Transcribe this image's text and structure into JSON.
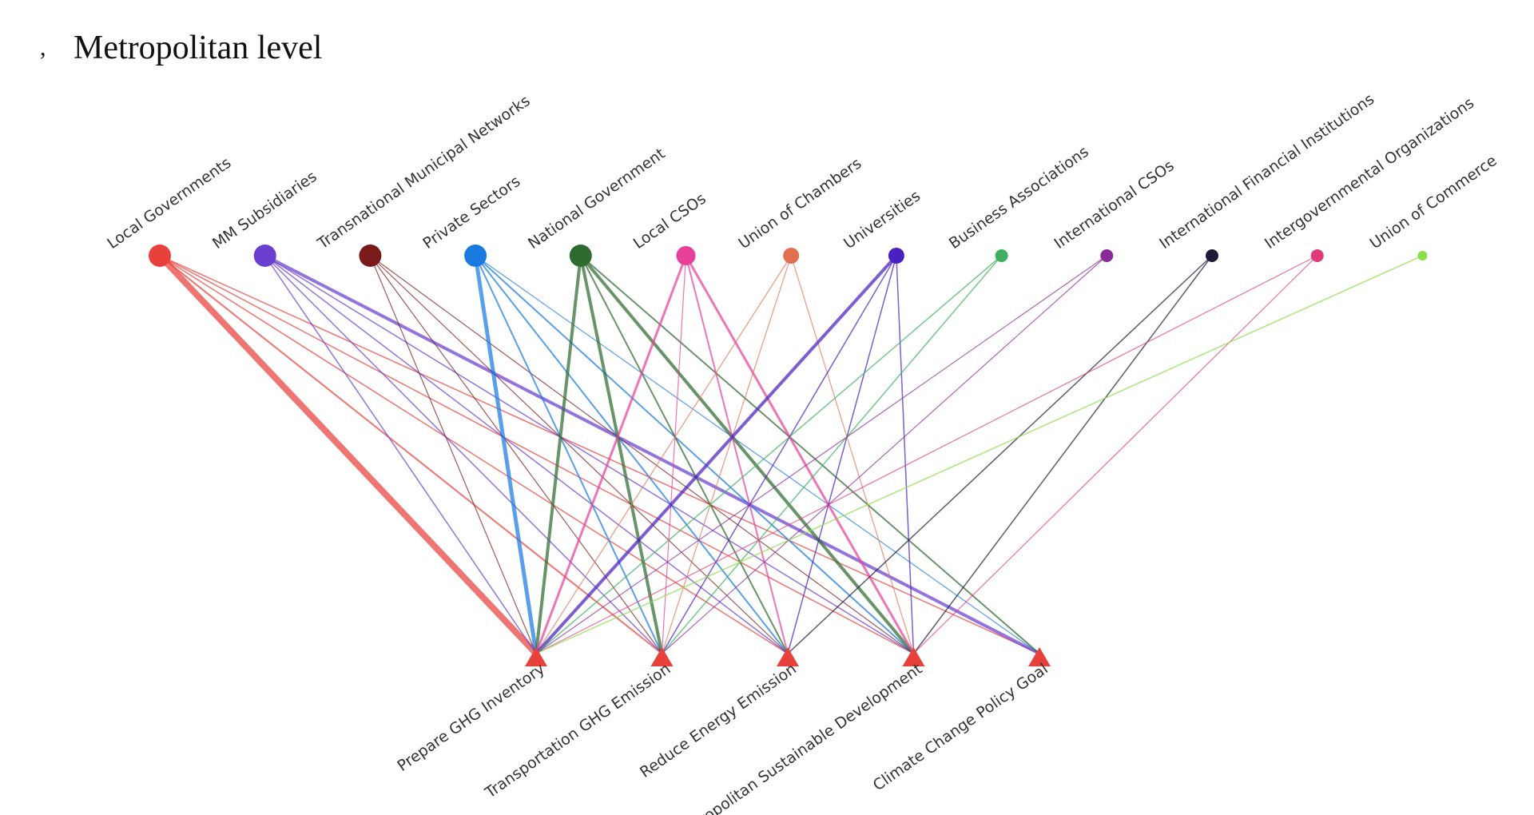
{
  "header": {
    "bullet": ",",
    "title": "Metropolitan level"
  },
  "actors": [
    {
      "label": "Local Governments",
      "color": "#e8403a",
      "size": 14
    },
    {
      "label": "MM Subsidiaries",
      "color": "#6a3fd0",
      "size": 14
    },
    {
      "label": "Transnational Municipal Networks",
      "color": "#7a1a1a",
      "size": 14
    },
    {
      "label": "Private Sectors",
      "color": "#1a7ae0",
      "size": 14
    },
    {
      "label": "National Government",
      "color": "#2f6a2f",
      "size": 14
    },
    {
      "label": "Local CSOs",
      "color": "#e8409a",
      "size": 12
    },
    {
      "label": "Union of Chambers",
      "color": "#e07050",
      "size": 10
    },
    {
      "label": "Universities",
      "color": "#4a20c0",
      "size": 10
    },
    {
      "label": "Business Associations",
      "color": "#40b060",
      "size": 8
    },
    {
      "label": "International CSOs",
      "color": "#8a2a9a",
      "size": 8
    },
    {
      "label": "International Financial Institutions",
      "color": "#1e1a3a",
      "size": 8
    },
    {
      "label": "Intergovernmental Organizations",
      "color": "#e03a7a",
      "size": 8
    },
    {
      "label": "Union of Commerce",
      "color": "#8ade4a",
      "size": 6
    }
  ],
  "goals": [
    {
      "label": "Prepare GHG Inventory",
      "color": "#e8403a"
    },
    {
      "label": "Transportation GHG Emission",
      "color": "#e8403a"
    },
    {
      "label": "Reduce Energy Emission",
      "color": "#e8403a"
    },
    {
      "label": "Metropolitan Sustainable Development",
      "color": "#e8403a"
    },
    {
      "label": "Climate Change Policy Goal",
      "color": "#e8403a"
    }
  ],
  "edges": [
    [
      0,
      0,
      8
    ],
    [
      0,
      1,
      2
    ],
    [
      0,
      2,
      1.5
    ],
    [
      0,
      3,
      1.5
    ],
    [
      0,
      4,
      1.5
    ],
    [
      1,
      0,
      1.5
    ],
    [
      1,
      1,
      1.5
    ],
    [
      1,
      2,
      1.5
    ],
    [
      1,
      3,
      1.5
    ],
    [
      1,
      4,
      4
    ],
    [
      2,
      0,
      1.2
    ],
    [
      2,
      1,
      1.2
    ],
    [
      2,
      2,
      1.2
    ],
    [
      2,
      3,
      1.2
    ],
    [
      3,
      0,
      5
    ],
    [
      3,
      1,
      2
    ],
    [
      3,
      2,
      2
    ],
    [
      3,
      3,
      2
    ],
    [
      3,
      4,
      1.2
    ],
    [
      4,
      0,
      4
    ],
    [
      4,
      1,
      4
    ],
    [
      4,
      2,
      2
    ],
    [
      4,
      3,
      4
    ],
    [
      4,
      4,
      2
    ],
    [
      5,
      0,
      3
    ],
    [
      5,
      1,
      1.2
    ],
    [
      5,
      2,
      2
    ],
    [
      5,
      3,
      3
    ],
    [
      6,
      0,
      1.2
    ],
    [
      6,
      1,
      1.2
    ],
    [
      6,
      3,
      1.2
    ],
    [
      7,
      0,
      4
    ],
    [
      7,
      1,
      1.5
    ],
    [
      7,
      2,
      1.5
    ],
    [
      7,
      3,
      1.5
    ],
    [
      8,
      0,
      1.5
    ],
    [
      8,
      1,
      1.5
    ],
    [
      9,
      0,
      1.2
    ],
    [
      9,
      1,
      1.2
    ],
    [
      10,
      2,
      1.5
    ],
    [
      10,
      3,
      1.5
    ],
    [
      11,
      0,
      1.2
    ],
    [
      11,
      3,
      1.2
    ],
    [
      12,
      0,
      1.5
    ]
  ]
}
